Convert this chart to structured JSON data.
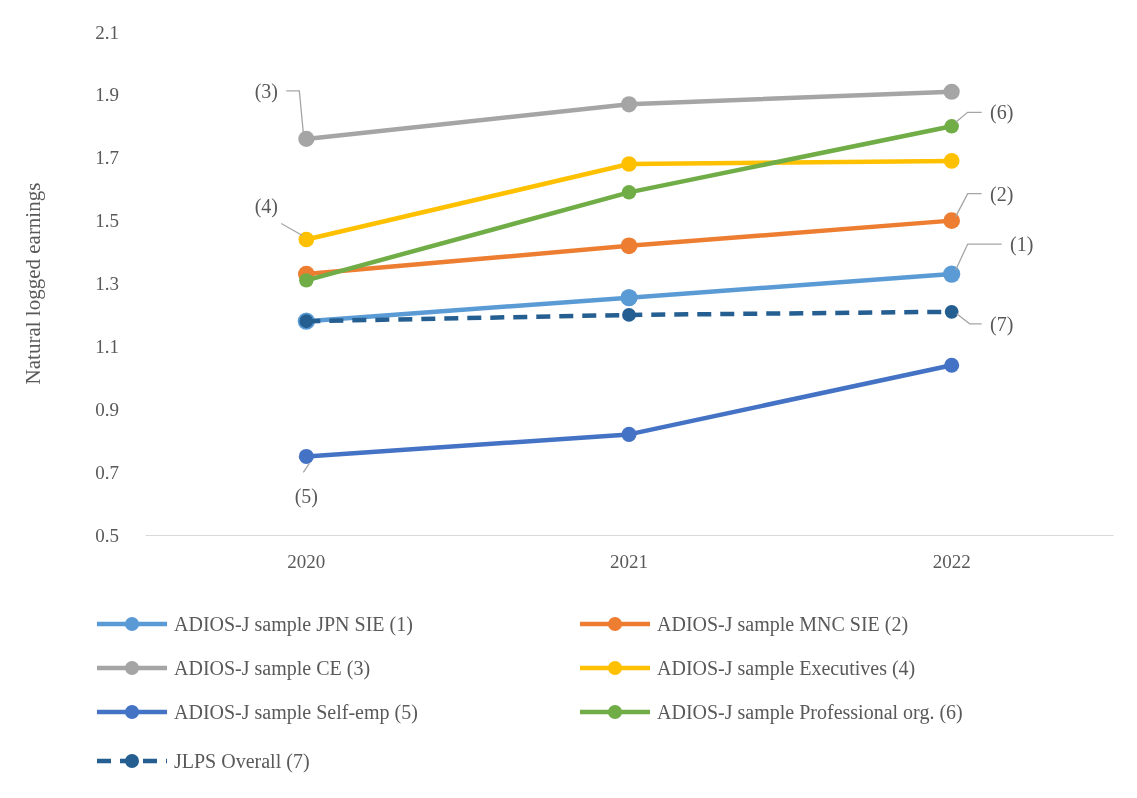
{
  "chart_data": {
    "type": "line",
    "ylabel": "Natural logged earnings",
    "categories": [
      "2020",
      "2021",
      "2022"
    ],
    "ylim": [
      0.5,
      2.1
    ],
    "yticks": [
      0.5,
      0.7,
      0.9,
      1.1,
      1.3,
      1.5,
      1.7,
      1.9,
      2.1
    ],
    "grid": false,
    "legend": "bottom",
    "marker": "circle",
    "series": [
      {
        "name": "ADIOS-J sample JPN SIE (1)",
        "color": "#5b9bd5",
        "values": [
          1.18,
          1.255,
          1.33
        ]
      },
      {
        "name": "ADIOS-J sample MNC SIE (2)",
        "color": "#ed7d31",
        "values": [
          1.33,
          1.42,
          1.5
        ]
      },
      {
        "name": "ADIOS-J sample CE (3)",
        "color": "#a5a5a5",
        "values": [
          1.76,
          1.87,
          1.91
        ]
      },
      {
        "name": "ADIOS-J sample Executives (4)",
        "color": "#ffc000",
        "values": [
          1.44,
          1.68,
          1.69
        ]
      },
      {
        "name": "ADIOS-J sample Self-emp (5)",
        "color": "#4472c4",
        "values": [
          0.75,
          0.82,
          1.04
        ]
      },
      {
        "name": "ADIOS-J sample Professional org. (6)",
        "color": "#70ad47",
        "values": [
          1.31,
          1.59,
          1.8
        ]
      },
      {
        "name": "JLPS Overall (7)",
        "color": "#255e91",
        "values": [
          1.18,
          1.2,
          1.21
        ],
        "line_style": "dashed"
      }
    ],
    "annotations": [
      {
        "text": "(3)",
        "x": "2020",
        "y": 1.76
      },
      {
        "text": "(4)",
        "x": "2020",
        "y": 1.44
      },
      {
        "text": "(5)",
        "x": "2020",
        "y": 0.75
      },
      {
        "text": "(6)",
        "x": "2022",
        "y": 1.8
      },
      {
        "text": "(2)",
        "x": "2022",
        "y": 1.5
      },
      {
        "text": "(1)",
        "x": "2022",
        "y": 1.33
      },
      {
        "text": "(7)",
        "x": "2022",
        "y": 1.21
      }
    ]
  }
}
